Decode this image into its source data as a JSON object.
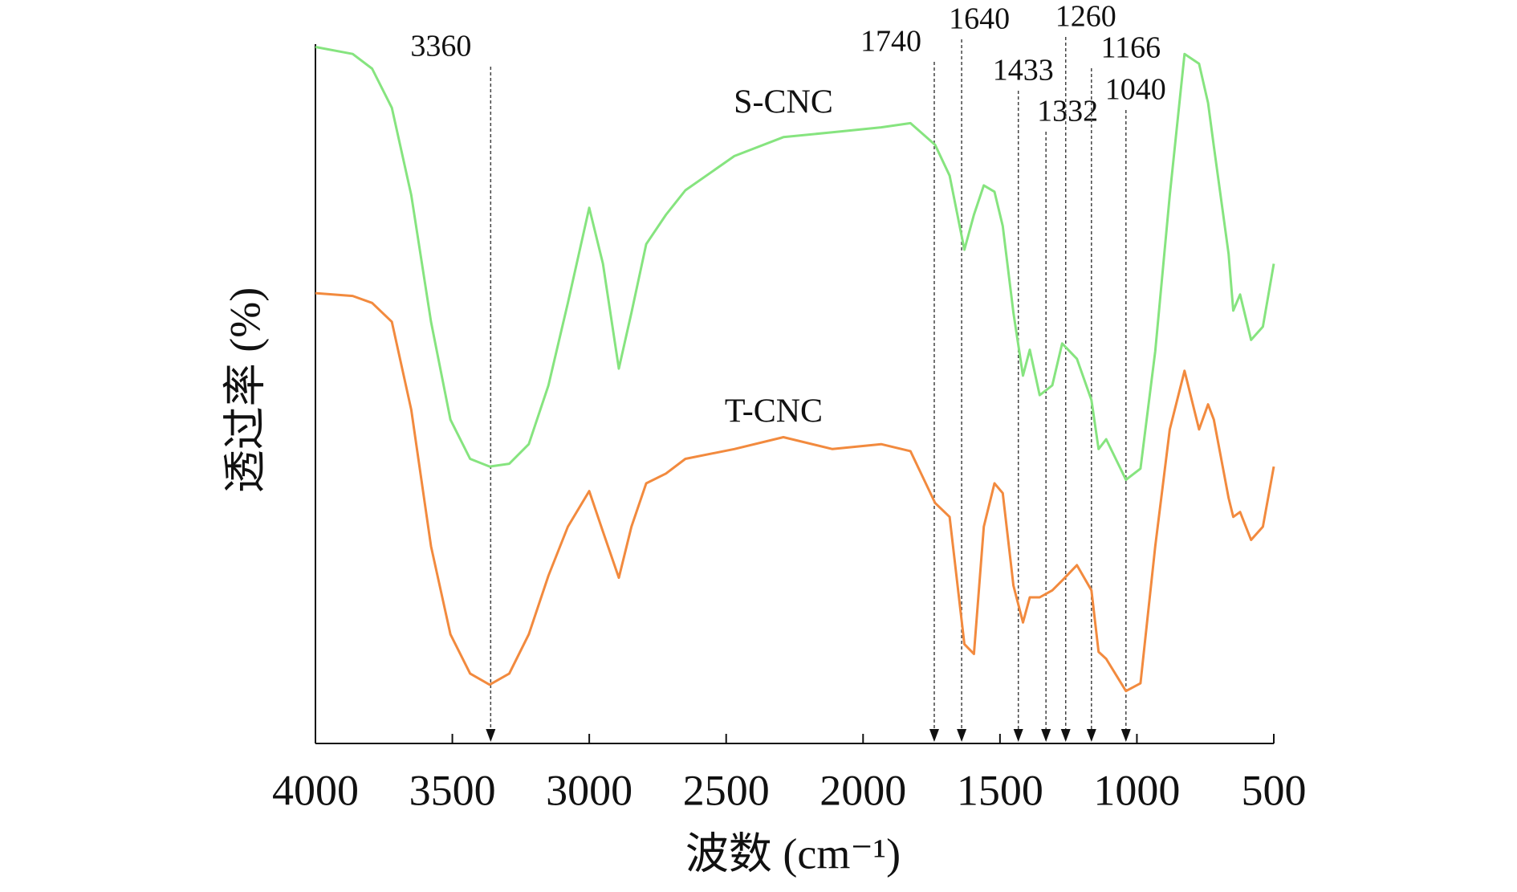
{
  "chart_data": {
    "type": "line",
    "x_label": "波数 (cm⁻¹)",
    "y_label": "透过率 (%)",
    "xlim": [
      4000,
      500
    ],
    "ylim": [
      0,
      100
    ],
    "xticks": [
      4000,
      3500,
      3000,
      2500,
      2000,
      1500,
      1000,
      500
    ],
    "annotations": [
      3360,
      1740,
      1640,
      1433,
      1332,
      1260,
      1166,
      1040
    ],
    "x": [
      4000,
      3864,
      3793,
      3721,
      3650,
      3578,
      3507,
      3435,
      3364,
      3292,
      3221,
      3149,
      3078,
      3000,
      2950,
      2892,
      2846,
      2792,
      2720,
      2649,
      2470,
      2291,
      2112,
      1934,
      1827,
      1737,
      1684,
      1630,
      1595,
      1559,
      1520,
      1490,
      1451,
      1416,
      1391,
      1355,
      1309,
      1273,
      1219,
      1166,
      1140,
      1112,
      1040,
      987,
      933,
      880,
      826,
      773,
      740,
      719,
      665,
      648,
      623,
      583,
      540,
      500
    ],
    "series": [
      {
        "name": "S-CNC",
        "color": "#86e47f",
        "values": [
          99.6,
          98.6,
          96.5,
          90.9,
          78.4,
          60.3,
          46.3,
          40.7,
          39.6,
          40.0,
          42.8,
          51.2,
          63.0,
          76.6,
          68.6,
          53.6,
          61.6,
          71.4,
          75.6,
          79.1,
          84.0,
          86.7,
          87.4,
          88.1,
          88.7,
          85.6,
          81.2,
          70.6,
          75.6,
          79.8,
          78.9,
          74.0,
          61.6,
          52.6,
          56.3,
          49.8,
          51.2,
          57.2,
          55.0,
          49.1,
          42.1,
          43.5,
          37.7,
          39.3,
          56.1,
          78.4,
          98.6,
          97.2,
          91.6,
          85.4,
          70.0,
          61.9,
          64.2,
          57.7,
          59.6,
          68.6
        ]
      },
      {
        "name": "T-CNC",
        "color": "#f28a3e",
        "values": [
          64.4,
          64.0,
          63.0,
          60.3,
          47.7,
          28.2,
          15.6,
          10.0,
          8.4,
          10.0,
          15.6,
          24.0,
          31.0,
          36.1,
          30.3,
          23.7,
          31.0,
          37.2,
          38.6,
          40.7,
          42.1,
          43.8,
          42.1,
          42.8,
          41.8,
          34.4,
          32.4,
          14.2,
          12.8,
          31.0,
          37.2,
          35.8,
          22.6,
          17.3,
          20.9,
          20.9,
          21.9,
          23.3,
          25.5,
          21.9,
          13.1,
          12.1,
          7.5,
          8.6,
          28.2,
          44.9,
          53.3,
          44.9,
          48.5,
          46.3,
          35.1,
          32.4,
          33.1,
          29.1,
          31.0,
          39.6
        ]
      }
    ]
  }
}
